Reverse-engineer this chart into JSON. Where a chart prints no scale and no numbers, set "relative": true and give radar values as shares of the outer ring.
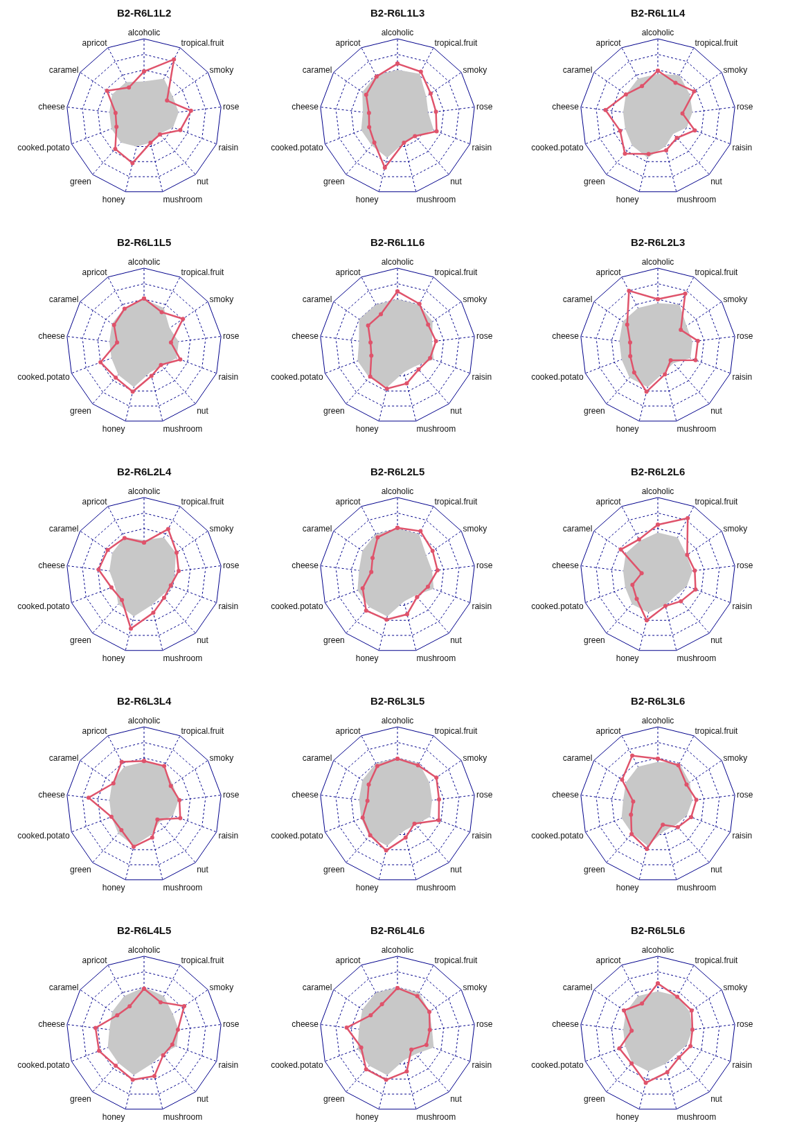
{
  "chart_data": [
    {
      "type": "radar",
      "title": "B2-R6L1L2",
      "relative": true,
      "grid": true,
      "categories": [
        "alcoholic",
        "tropical.fruit",
        "smoky",
        "rose",
        "raisin",
        "nut",
        "mushroom",
        "honey",
        "green",
        "cooked.potato",
        "cheese",
        "caramel",
        "apricot"
      ],
      "series": [
        {
          "type": "area",
          "color": "#c8c8c8",
          "values": [
            0.45,
            0.55,
            0.45,
            0.45,
            0.4,
            0.3,
            0.35,
            0.4,
            0.45,
            0.45,
            0.45,
            0.5,
            0.5
          ]
        },
        {
          "marker": "circle",
          "color": "#df536b",
          "values": [
            0.58,
            0.83,
            0.36,
            0.61,
            0.5,
            0.31,
            0.35,
            0.62,
            0.56,
            0.38,
            0.37,
            0.58,
            0.42
          ]
        }
      ]
    },
    {
      "type": "radar",
      "title": "B2-R6L1L3",
      "relative": true,
      "grid": true,
      "categories": [
        "alcoholic",
        "tropical.fruit",
        "smoky",
        "rose",
        "raisin",
        "nut",
        "mushroom",
        "honey",
        "green",
        "cooked.potato",
        "cheese",
        "caramel",
        "apricot"
      ],
      "series": [
        {
          "type": "area",
          "color": "#c8c8c8",
          "values": [
            0.6,
            0.62,
            0.45,
            0.4,
            0.5,
            0.35,
            0.35,
            0.55,
            0.5,
            0.5,
            0.45,
            0.55,
            0.6
          ]
        },
        {
          "marker": "circle",
          "color": "#df536b",
          "values": [
            0.68,
            0.65,
            0.52,
            0.5,
            0.54,
            0.34,
            0.35,
            0.68,
            0.45,
            0.39,
            0.37,
            0.49,
            0.58
          ]
        }
      ]
    },
    {
      "type": "radar",
      "title": "B2-R6L1L4",
      "relative": true,
      "grid": true,
      "categories": [
        "alcoholic",
        "tropical.fruit",
        "smoky",
        "rose",
        "raisin",
        "nut",
        "mushroom",
        "honey",
        "green",
        "cooked.potato",
        "cheese",
        "caramel",
        "apricot"
      ],
      "series": [
        {
          "type": "area",
          "color": "#c8c8c8",
          "values": [
            0.55,
            0.6,
            0.5,
            0.45,
            0.4,
            0.3,
            0.4,
            0.55,
            0.5,
            0.45,
            0.45,
            0.5,
            0.55
          ]
        },
        {
          "marker": "circle",
          "color": "#df536b",
          "values": [
            0.59,
            0.49,
            0.57,
            0.32,
            0.51,
            0.37,
            0.45,
            0.5,
            0.64,
            0.52,
            0.68,
            0.5,
            0.44
          ]
        }
      ]
    },
    {
      "type": "radar",
      "title": "B2-R6L1L5",
      "relative": true,
      "grid": true,
      "categories": [
        "alcoholic",
        "tropical.fruit",
        "smoky",
        "rose",
        "raisin",
        "nut",
        "mushroom",
        "honey",
        "green",
        "cooked.potato",
        "cheese",
        "caramel",
        "apricot"
      ],
      "series": [
        {
          "type": "area",
          "color": "#c8c8c8",
          "values": [
            0.6,
            0.55,
            0.4,
            0.45,
            0.45,
            0.35,
            0.35,
            0.55,
            0.5,
            0.45,
            0.45,
            0.5,
            0.55
          ]
        },
        {
          "marker": "circle",
          "color": "#df536b",
          "values": [
            0.61,
            0.49,
            0.61,
            0.35,
            0.5,
            0.33,
            0.4,
            0.61,
            0.55,
            0.6,
            0.35,
            0.47,
            0.54
          ]
        }
      ]
    },
    {
      "type": "radar",
      "title": "B2-R6L1L6",
      "relative": true,
      "grid": true,
      "categories": [
        "alcoholic",
        "tropical.fruit",
        "smoky",
        "rose",
        "raisin",
        "nut",
        "mushroom",
        "honey",
        "green",
        "cooked.potato",
        "cheese",
        "caramel",
        "apricot"
      ],
      "series": [
        {
          "type": "area",
          "color": "#c8c8c8",
          "values": [
            0.6,
            0.6,
            0.55,
            0.45,
            0.5,
            0.35,
            0.35,
            0.55,
            0.55,
            0.55,
            0.5,
            0.6,
            0.6
          ]
        },
        {
          "marker": "circle",
          "color": "#df536b",
          "values": [
            0.7,
            0.61,
            0.48,
            0.5,
            0.45,
            0.41,
            0.5,
            0.57,
            0.53,
            0.36,
            0.35,
            0.46,
            0.46
          ]
        }
      ]
    },
    {
      "type": "radar",
      "title": "B2-R6L2L3",
      "relative": true,
      "grid": true,
      "categories": [
        "alcoholic",
        "tropical.fruit",
        "smoky",
        "rose",
        "raisin",
        "nut",
        "mushroom",
        "honey",
        "green",
        "cooked.potato",
        "cheese",
        "caramel",
        "apricot"
      ],
      "series": [
        {
          "type": "area",
          "color": "#c8c8c8",
          "values": [
            0.55,
            0.6,
            0.45,
            0.45,
            0.45,
            0.3,
            0.35,
            0.55,
            0.55,
            0.5,
            0.5,
            0.55,
            0.55
          ]
        },
        {
          "marker": "circle",
          "color": "#df536b",
          "values": [
            0.6,
            0.76,
            0.36,
            0.52,
            0.52,
            0.25,
            0.38,
            0.61,
            0.46,
            0.38,
            0.36,
            0.48,
            0.8
          ]
        }
      ]
    },
    {
      "type": "radar",
      "title": "B2-R6L2L4",
      "relative": true,
      "grid": true,
      "categories": [
        "alcoholic",
        "tropical.fruit",
        "smoky",
        "rose",
        "raisin",
        "nut",
        "mushroom",
        "honey",
        "green",
        "cooked.potato",
        "cheese",
        "caramel",
        "apricot"
      ],
      "series": [
        {
          "type": "area",
          "color": "#c8c8c8",
          "values": [
            0.45,
            0.55,
            0.5,
            0.4,
            0.4,
            0.35,
            0.4,
            0.55,
            0.5,
            0.4,
            0.45,
            0.5,
            0.55
          ]
        },
        {
          "marker": "circle",
          "color": "#df536b",
          "values": [
            0.42,
            0.67,
            0.51,
            0.45,
            0.37,
            0.39,
            0.5,
            0.71,
            0.43,
            0.45,
            0.59,
            0.57,
            0.54
          ]
        }
      ]
    },
    {
      "type": "radar",
      "title": "B2-R6L2L5",
      "relative": true,
      "grid": true,
      "categories": [
        "alcoholic",
        "tropical.fruit",
        "smoky",
        "rose",
        "raisin",
        "nut",
        "mushroom",
        "honey",
        "green",
        "cooked.potato",
        "cheese",
        "caramel",
        "apricot"
      ],
      "series": [
        {
          "type": "area",
          "color": "#c8c8c8",
          "values": [
            0.6,
            0.6,
            0.45,
            0.45,
            0.5,
            0.35,
            0.35,
            0.55,
            0.55,
            0.55,
            0.5,
            0.55,
            0.6
          ]
        },
        {
          "marker": "circle",
          "color": "#df536b",
          "values": [
            0.61,
            0.64,
            0.55,
            0.52,
            0.42,
            0.38,
            0.52,
            0.59,
            0.61,
            0.48,
            0.34,
            0.39,
            0.55
          ]
        }
      ]
    },
    {
      "type": "radar",
      "title": "B2-R6L2L6",
      "relative": true,
      "grid": true,
      "categories": [
        "alcoholic",
        "tropical.fruit",
        "smoky",
        "rose",
        "raisin",
        "nut",
        "mushroom",
        "honey",
        "green",
        "cooked.potato",
        "cheese",
        "caramel",
        "apricot"
      ],
      "series": [
        {
          "type": "area",
          "color": "#c8c8c8",
          "values": [
            0.55,
            0.55,
            0.45,
            0.45,
            0.4,
            0.35,
            0.4,
            0.5,
            0.5,
            0.45,
            0.45,
            0.5,
            0.5
          ]
        },
        {
          "marker": "circle",
          "color": "#df536b",
          "values": [
            0.65,
            0.83,
            0.46,
            0.48,
            0.52,
            0.45,
            0.41,
            0.6,
            0.41,
            0.35,
            0.21,
            0.58,
            0.52
          ]
        }
      ]
    },
    {
      "type": "radar",
      "title": "B2-R6L3L4",
      "relative": true,
      "grid": true,
      "categories": [
        "alcoholic",
        "tropical.fruit",
        "smoky",
        "rose",
        "raisin",
        "nut",
        "mushroom",
        "honey",
        "green",
        "cooked.potato",
        "cheese",
        "caramel",
        "apricot"
      ],
      "series": [
        {
          "type": "area",
          "color": "#c8c8c8",
          "values": [
            0.55,
            0.55,
            0.45,
            0.45,
            0.4,
            0.3,
            0.4,
            0.55,
            0.5,
            0.45,
            0.45,
            0.5,
            0.55
          ]
        },
        {
          "marker": "circle",
          "color": "#df536b",
          "values": [
            0.56,
            0.56,
            0.42,
            0.46,
            0.5,
            0.26,
            0.44,
            0.56,
            0.44,
            0.45,
            0.72,
            0.48,
            0.62
          ]
        }
      ]
    },
    {
      "type": "radar",
      "title": "B2-R6L3L5",
      "relative": true,
      "grid": true,
      "categories": [
        "alcoholic",
        "tropical.fruit",
        "smoky",
        "rose",
        "raisin",
        "nut",
        "mushroom",
        "honey",
        "green",
        "cooked.potato",
        "cheese",
        "caramel",
        "apricot"
      ],
      "series": [
        {
          "type": "area",
          "color": "#c8c8c8",
          "values": [
            0.6,
            0.6,
            0.5,
            0.45,
            0.45,
            0.35,
            0.35,
            0.55,
            0.55,
            0.5,
            0.5,
            0.55,
            0.6
          ]
        },
        {
          "marker": "circle",
          "color": "#df536b",
          "values": [
            0.59,
            0.57,
            0.61,
            0.54,
            0.57,
            0.33,
            0.44,
            0.61,
            0.53,
            0.48,
            0.39,
            0.45,
            0.56
          ]
        }
      ]
    },
    {
      "type": "radar",
      "title": "B2-R6L3L6",
      "relative": true,
      "grid": true,
      "categories": [
        "alcoholic",
        "tropical.fruit",
        "smoky",
        "rose",
        "raisin",
        "nut",
        "mushroom",
        "honey",
        "green",
        "cooked.potato",
        "cheese",
        "caramel",
        "apricot"
      ],
      "series": [
        {
          "type": "area",
          "color": "#c8c8c8",
          "values": [
            0.55,
            0.6,
            0.5,
            0.45,
            0.4,
            0.35,
            0.35,
            0.55,
            0.5,
            0.5,
            0.45,
            0.5,
            0.55
          ]
        },
        {
          "marker": "circle",
          "color": "#df536b",
          "values": [
            0.59,
            0.57,
            0.45,
            0.5,
            0.46,
            0.39,
            0.27,
            0.59,
            0.51,
            0.37,
            0.32,
            0.56,
            0.71
          ]
        }
      ]
    },
    {
      "type": "radar",
      "title": "B2-R6L4L5",
      "relative": true,
      "grid": true,
      "categories": [
        "alcoholic",
        "tropical.fruit",
        "smoky",
        "rose",
        "raisin",
        "nut",
        "mushroom",
        "honey",
        "green",
        "cooked.potato",
        "cheese",
        "caramel",
        "apricot"
      ],
      "series": [
        {
          "type": "area",
          "color": "#c8c8c8",
          "values": [
            0.6,
            0.55,
            0.45,
            0.45,
            0.45,
            0.35,
            0.4,
            0.55,
            0.5,
            0.5,
            0.45,
            0.5,
            0.55
          ]
        },
        {
          "marker": "circle",
          "color": "#df536b",
          "values": [
            0.58,
            0.46,
            0.63,
            0.44,
            0.39,
            0.37,
            0.56,
            0.61,
            0.55,
            0.62,
            0.63,
            0.42,
            0.4
          ]
        }
      ]
    },
    {
      "type": "radar",
      "title": "B2-R6L4L6",
      "relative": true,
      "grid": true,
      "categories": [
        "alcoholic",
        "tropical.fruit",
        "smoky",
        "rose",
        "raisin",
        "nut",
        "mushroom",
        "honey",
        "green",
        "cooked.potato",
        "cheese",
        "caramel",
        "apricot"
      ],
      "series": [
        {
          "type": "area",
          "color": "#c8c8c8",
          "values": [
            0.6,
            0.6,
            0.5,
            0.45,
            0.5,
            0.35,
            0.35,
            0.55,
            0.55,
            0.55,
            0.5,
            0.55,
            0.6
          ]
        },
        {
          "marker": "circle",
          "color": "#df536b",
          "values": [
            0.59,
            0.55,
            0.5,
            0.42,
            0.4,
            0.27,
            0.5,
            0.61,
            0.61,
            0.5,
            0.66,
            0.42,
            0.43
          ]
        }
      ]
    },
    {
      "type": "radar",
      "title": "B2-R6L5L6",
      "relative": true,
      "grid": true,
      "categories": [
        "alcoholic",
        "tropical.fruit",
        "smoky",
        "rose",
        "raisin",
        "nut",
        "mushroom",
        "honey",
        "green",
        "cooked.potato",
        "cheese",
        "caramel",
        "apricot"
      ],
      "series": [
        {
          "type": "area",
          "color": "#c8c8c8",
          "values": [
            0.55,
            0.55,
            0.5,
            0.45,
            0.4,
            0.35,
            0.4,
            0.5,
            0.5,
            0.45,
            0.45,
            0.5,
            0.55
          ]
        },
        {
          "marker": "circle",
          "color": "#df536b",
          "values": [
            0.65,
            0.54,
            0.53,
            0.45,
            0.45,
            0.41,
            0.51,
            0.65,
            0.51,
            0.53,
            0.34,
            0.53,
            0.44
          ]
        }
      ]
    }
  ]
}
